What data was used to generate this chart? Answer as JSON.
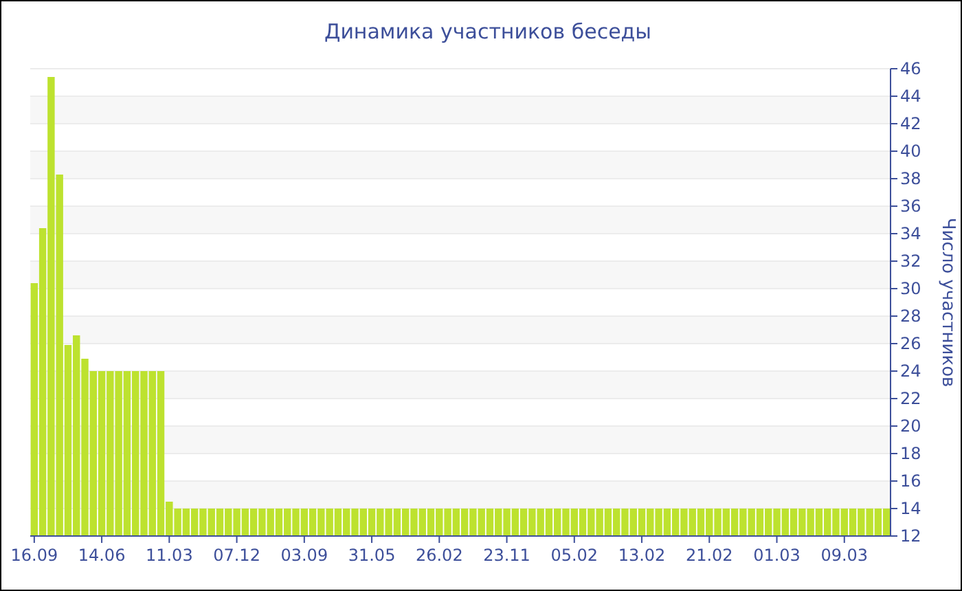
{
  "chart_data": {
    "type": "bar",
    "title": "Динамика участников беседы",
    "ylabel": "Число участников",
    "categories": [
      "16.09",
      null,
      null,
      null,
      null,
      null,
      null,
      null,
      "14.06",
      null,
      null,
      null,
      null,
      null,
      null,
      null,
      "11.03",
      null,
      null,
      null,
      null,
      null,
      null,
      null,
      "07.12",
      null,
      null,
      null,
      null,
      null,
      null,
      null,
      "03.09",
      null,
      null,
      null,
      null,
      null,
      null,
      null,
      "31.05",
      null,
      null,
      null,
      null,
      null,
      null,
      null,
      "26.02",
      null,
      null,
      null,
      null,
      null,
      null,
      null,
      "23.11",
      null,
      null,
      null,
      null,
      null,
      null,
      null,
      "05.02",
      null,
      null,
      null,
      null,
      null,
      null,
      null,
      "13.02",
      null,
      null,
      null,
      null,
      null,
      null,
      null,
      "21.02",
      null,
      null,
      null,
      null,
      null,
      null,
      null,
      "01.03",
      null,
      null,
      null,
      null,
      null,
      null,
      null,
      "09.03",
      null,
      null,
      null,
      null,
      null
    ],
    "values": [
      30.4,
      34.4,
      45.4,
      38.3,
      25.9,
      26.6,
      24.9,
      24,
      24,
      24,
      24,
      24,
      24,
      24,
      24,
      24,
      14.5,
      14,
      14,
      14,
      14,
      14,
      14,
      14,
      14,
      14,
      14,
      14,
      14,
      14,
      14,
      14,
      14,
      14,
      14,
      14,
      14,
      14,
      14,
      14,
      14,
      14,
      14,
      14,
      14,
      14,
      14,
      14,
      14,
      14,
      14,
      14,
      14,
      14,
      14,
      14,
      14,
      14,
      14,
      14,
      14,
      14,
      14,
      14,
      14,
      14,
      14,
      14,
      14,
      14,
      14,
      14,
      14,
      14,
      14,
      14,
      14,
      14,
      14,
      14,
      14,
      14,
      14,
      14,
      14,
      14,
      14,
      14,
      14,
      14,
      14,
      14,
      14,
      14,
      14,
      14,
      14,
      14,
      14,
      14,
      14,
      14
    ],
    "color": "#bde22f",
    "ylim": [
      12,
      46
    ],
    "yticks": [
      12,
      14,
      16,
      18,
      20,
      22,
      24,
      26,
      28,
      30,
      32,
      34,
      36,
      38,
      40,
      42,
      44,
      46
    ],
    "grid": "y"
  }
}
